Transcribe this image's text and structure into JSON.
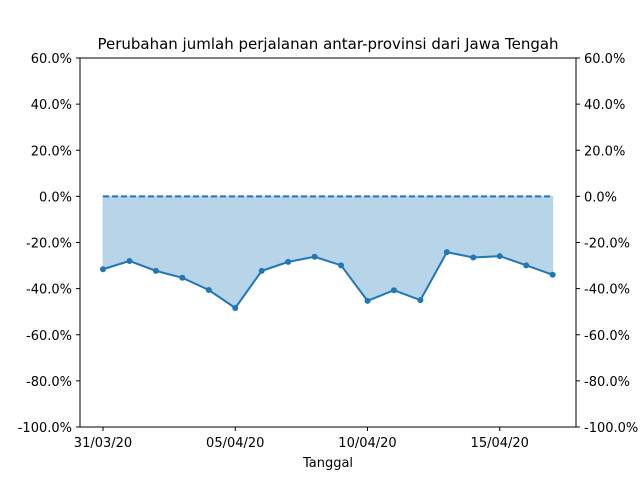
{
  "chart_data": {
    "type": "area",
    "title": "Perubahan jumlah perjalanan antar-provinsi dari Jawa Tengah",
    "xlabel": "Tanggal",
    "ylabel": "",
    "ylim": [
      -100,
      60
    ],
    "y_ticks": [
      60,
      40,
      20,
      0,
      -20,
      -40,
      -60,
      -80,
      -100
    ],
    "y_tick_labels": [
      "60.0%",
      "40.0%",
      "20.0%",
      "0.0%",
      "-20.0%",
      "-40.0%",
      "-60.0%",
      "-80.0%",
      "-100.0%"
    ],
    "y_axis_mirrored_right": true,
    "x": [
      "31/03/20",
      "01/04/20",
      "02/04/20",
      "03/04/20",
      "04/04/20",
      "05/04/20",
      "06/04/20",
      "07/04/20",
      "08/04/20",
      "09/04/20",
      "10/04/20",
      "11/04/20",
      "12/04/20",
      "13/04/20",
      "14/04/20",
      "15/04/20",
      "16/04/20",
      "17/04/20"
    ],
    "x_tick_labels": [
      "31/03/20",
      "05/04/20",
      "10/04/20",
      "15/04/20"
    ],
    "series": [
      {
        "values": [
          -31.6,
          -28.0,
          -32.3,
          -35.3,
          -40.6,
          -48.4,
          -32.3,
          -28.4,
          -26.2,
          -29.9,
          -45.3,
          -40.7,
          -45.0,
          -24.2,
          -26.5,
          -25.9,
          -29.9,
          -34.0
        ],
        "style": "solid line with markers, filled to baseline"
      }
    ],
    "reference_line": {
      "value": 0,
      "style": "dashed"
    },
    "grid": false,
    "colors": {
      "line": "#1f77b4",
      "fill": "#b8d4e9",
      "axes": "#000000"
    }
  }
}
